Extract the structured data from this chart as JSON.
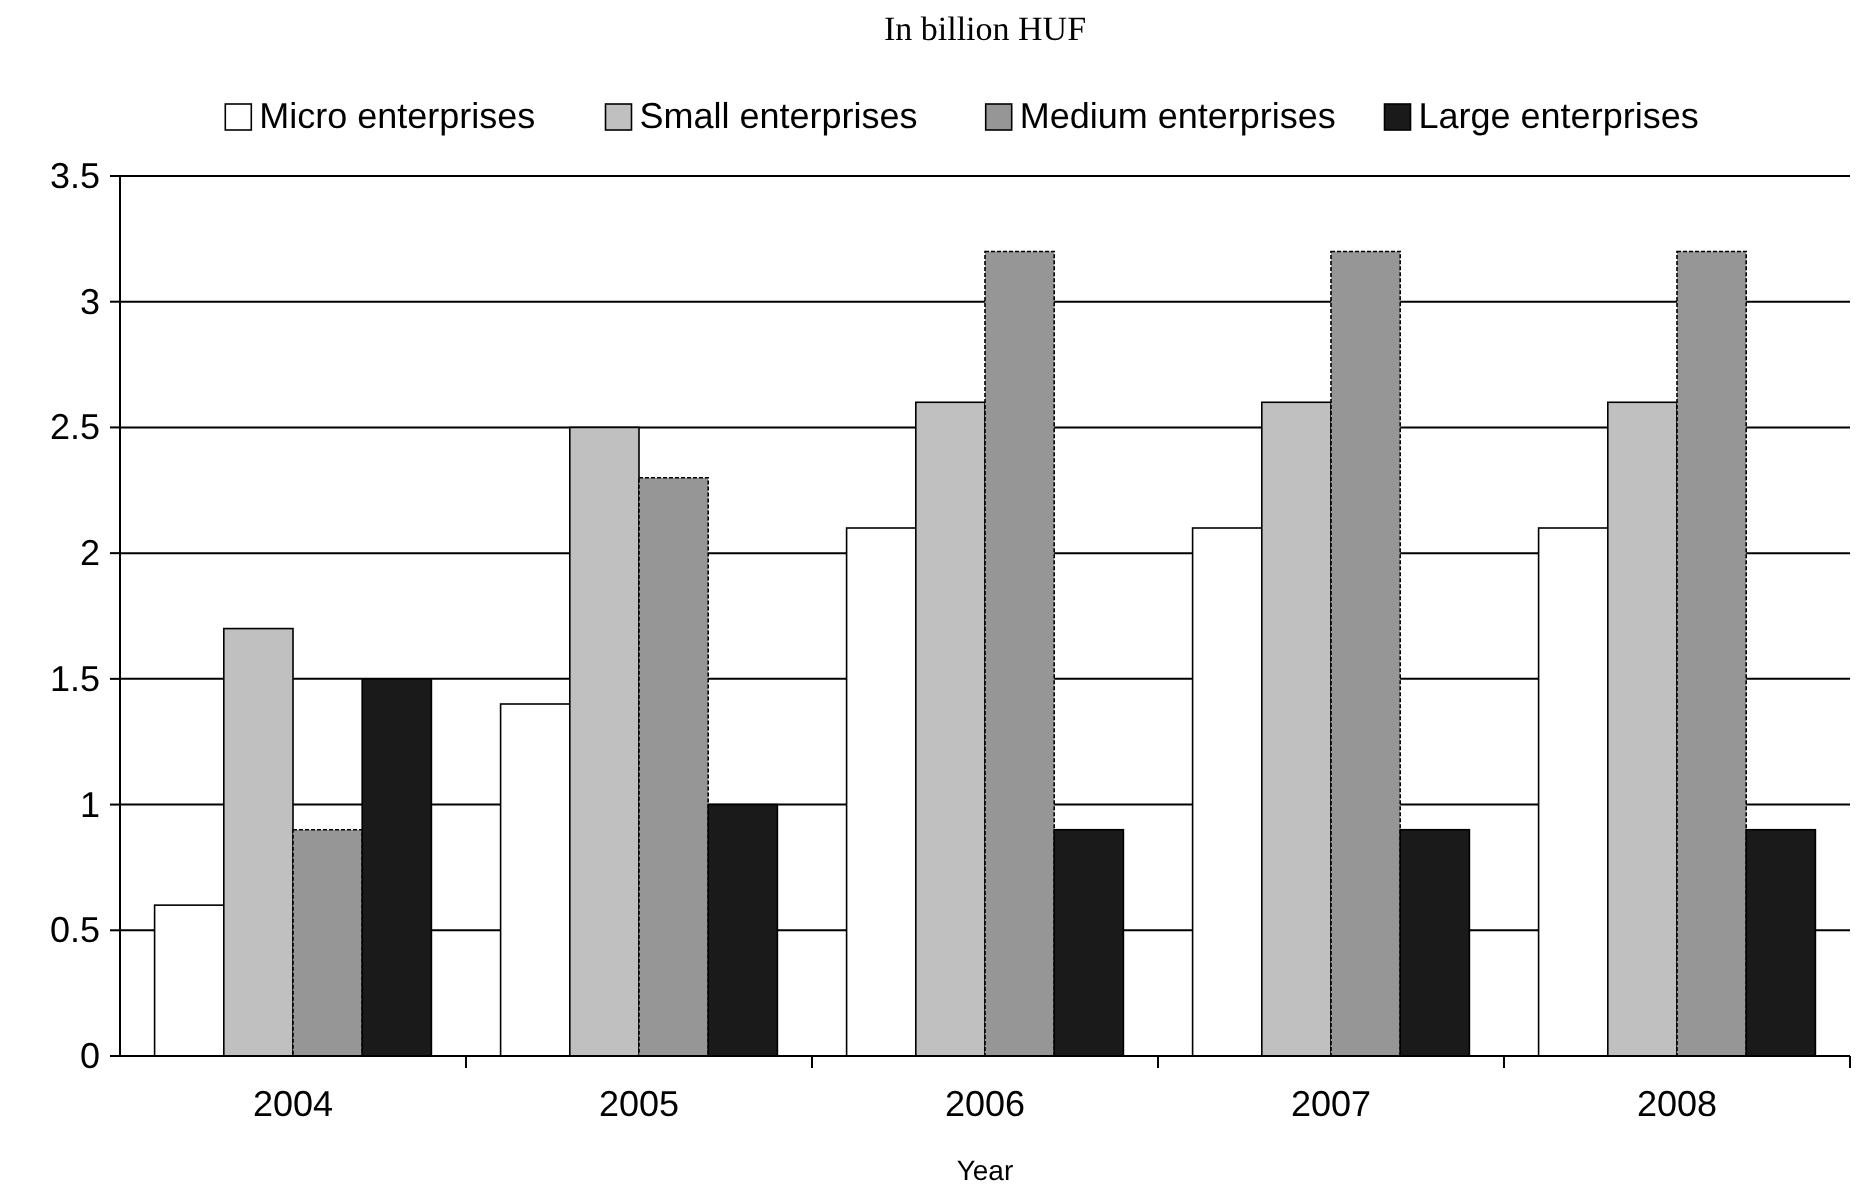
{
  "chart_data": {
    "type": "bar",
    "title": "In billion HUF",
    "xlabel": "Year",
    "categories": [
      "2004",
      "2005",
      "2006",
      "2007",
      "2008"
    ],
    "series": [
      {
        "name": "Micro enterprises",
        "color": "#ffffff",
        "values": [
          0.6,
          1.4,
          2.1,
          2.1,
          2.1
        ]
      },
      {
        "name": "Small enterprises",
        "color": "#c0c0c0",
        "values": [
          1.7,
          2.5,
          2.6,
          2.6,
          2.6
        ]
      },
      {
        "name": "Medium enterprises",
        "color": "#969696",
        "values": [
          0.9,
          2.3,
          3.2,
          3.2,
          3.2
        ]
      },
      {
        "name": "Large enterprises",
        "color": "#1a1a1a",
        "values": [
          1.5,
          1.0,
          0.9,
          0.9,
          0.9
        ]
      }
    ],
    "ylim": [
      0,
      3.5
    ],
    "yticks": [
      0,
      0.5,
      1,
      1.5,
      2,
      2.5,
      3,
      3.5
    ],
    "grid": "y",
    "legend": "top"
  }
}
